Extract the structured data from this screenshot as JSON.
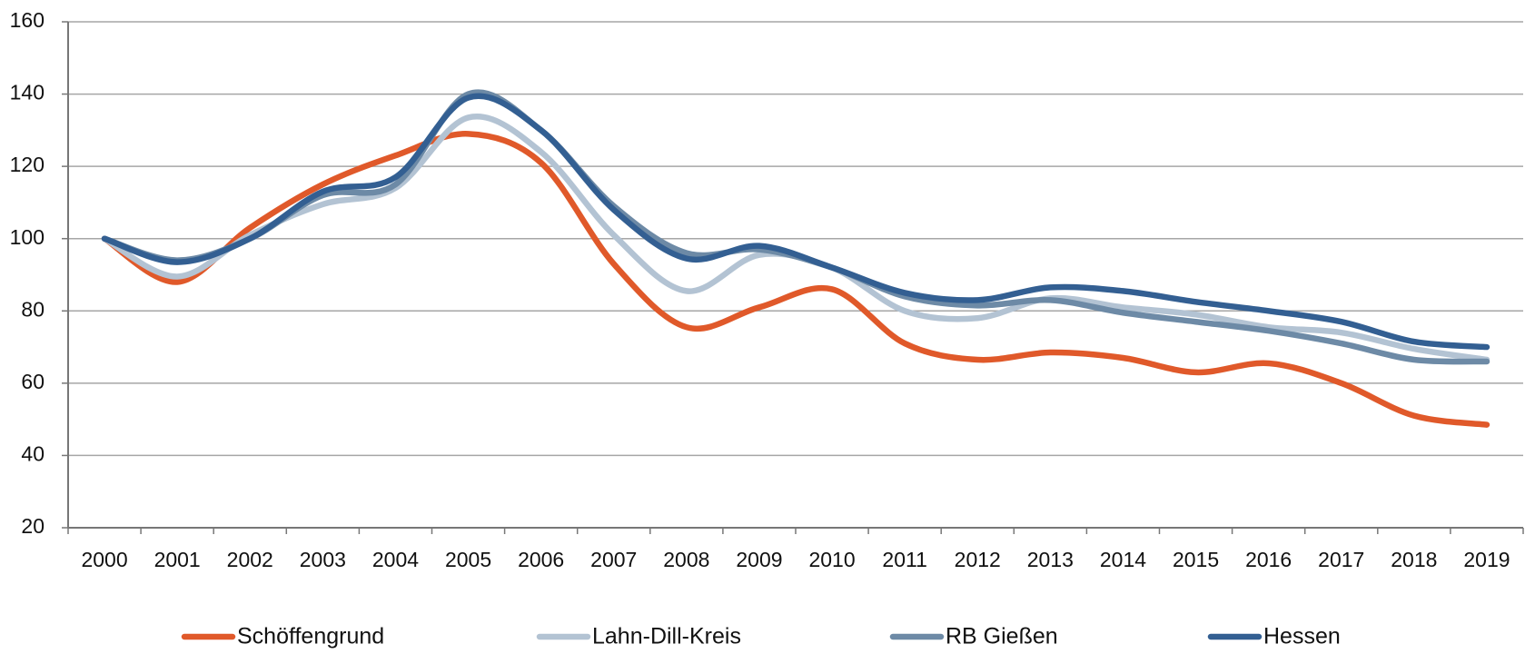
{
  "chart_data": {
    "type": "line",
    "smooth": true,
    "grid": true,
    "legend": "bottom",
    "categories": [
      "2000",
      "2001",
      "2002",
      "2003",
      "2004",
      "2005",
      "2006",
      "2007",
      "2008",
      "2009",
      "2010",
      "2011",
      "2012",
      "2013",
      "2014",
      "2015",
      "2016",
      "2017",
      "2018",
      "2019"
    ],
    "ylim": [
      20,
      160
    ],
    "yticks": [
      20,
      40,
      60,
      80,
      100,
      120,
      140,
      160
    ],
    "series": [
      {
        "name": "Schöffengrund",
        "color": "#e0592a",
        "values": [
          100,
          88,
          103,
          115,
          123,
          129,
          121,
          93,
          75.5,
          81,
          86,
          71,
          66.5,
          68.5,
          67,
          63,
          65.5,
          60,
          51,
          48.5
        ]
      },
      {
        "name": "Lahn-Dill-Kreis",
        "color": "#b3c3d3",
        "values": [
          100,
          89.5,
          101,
          109.5,
          114,
          133.5,
          124,
          101,
          85.5,
          95.5,
          92,
          80,
          78,
          83.5,
          81,
          79,
          75.5,
          74,
          69.5,
          66.5
        ]
      },
      {
        "name": "RB Gießen",
        "color": "#6d8aa6",
        "values": [
          100,
          94,
          100,
          112,
          115,
          140,
          130,
          109,
          96,
          97,
          92,
          84,
          81.5,
          83,
          79.5,
          77,
          74.5,
          71,
          66.5,
          66
        ]
      },
      {
        "name": "Hessen",
        "color": "#335f92",
        "values": [
          100,
          93.5,
          100,
          113,
          117,
          139,
          130,
          108,
          94.5,
          98,
          92,
          85,
          83,
          86.5,
          85.5,
          82.5,
          80,
          77,
          71.5,
          70
        ]
      }
    ]
  }
}
